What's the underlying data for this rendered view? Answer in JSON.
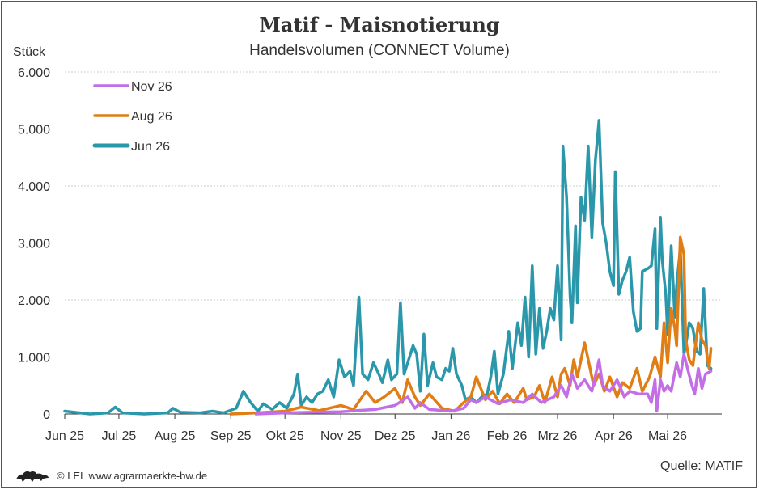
{
  "chart_data": {
    "type": "line",
    "title": "Matif - Maisnotierung",
    "subtitle": "Handelsvolumen (CONNECT Volume)",
    "ylabel": "Stück",
    "ylim": [
      0,
      6000
    ],
    "yticks": [
      0,
      1000,
      2000,
      3000,
      4000,
      5000,
      6000
    ],
    "ytick_labels": [
      "0",
      "1.000",
      "2.000",
      "3.000",
      "4.000",
      "5.000",
      "6.000"
    ],
    "xlim": [
      "2025-06-01",
      "2026-05-31"
    ],
    "xticks": [
      "2025-06-01",
      "2025-07-01",
      "2025-08-01",
      "2025-09-01",
      "2025-10-01",
      "2025-11-01",
      "2025-12-01",
      "2026-01-01",
      "2026-02-01",
      "2026-03-01",
      "2026-04-01",
      "2026-05-01"
    ],
    "xtick_labels": [
      "Jun 25",
      "Jul 25",
      "Aug 25",
      "Sep 25",
      "Okt 25",
      "Nov 25",
      "Dez 25",
      "Jan 26",
      "Feb 26",
      "Mrz 26",
      "Apr 26",
      "Mai 26"
    ],
    "grid": "horizontal",
    "legend_position": "top-left",
    "series": [
      {
        "name": "Nov 26",
        "color": "#c36ee6",
        "points": [
          [
            "2025-09-15",
            0
          ],
          [
            "2025-10-01",
            20
          ],
          [
            "2025-10-15",
            30
          ],
          [
            "2025-11-01",
            40
          ],
          [
            "2025-11-10",
            60
          ],
          [
            "2025-11-20",
            80
          ],
          [
            "2025-12-01",
            150
          ],
          [
            "2025-12-08",
            300
          ],
          [
            "2025-12-12",
            100
          ],
          [
            "2025-12-15",
            200
          ],
          [
            "2025-12-20",
            80
          ],
          [
            "2026-01-01",
            50
          ],
          [
            "2026-01-08",
            100
          ],
          [
            "2026-01-12",
            250
          ],
          [
            "2026-01-15",
            200
          ],
          [
            "2026-01-20",
            300
          ],
          [
            "2026-01-27",
            180
          ],
          [
            "2026-02-03",
            250
          ],
          [
            "2026-02-10",
            200
          ],
          [
            "2026-02-15",
            350
          ],
          [
            "2026-02-20",
            200
          ],
          [
            "2026-02-27",
            300
          ],
          [
            "2026-03-03",
            500
          ],
          [
            "2026-03-06",
            300
          ],
          [
            "2026-03-09",
            700
          ],
          [
            "2026-03-12",
            450
          ],
          [
            "2026-03-16",
            600
          ],
          [
            "2026-03-20",
            400
          ],
          [
            "2026-03-24",
            950
          ],
          [
            "2026-03-26",
            500
          ],
          [
            "2026-03-30",
            400
          ],
          [
            "2026-04-03",
            600
          ],
          [
            "2026-04-07",
            300
          ],
          [
            "2026-04-10",
            400
          ],
          [
            "2026-04-15",
            350
          ],
          [
            "2026-04-20",
            350
          ],
          [
            "2026-04-22",
            200
          ],
          [
            "2026-04-24",
            600
          ],
          [
            "2026-04-25",
            50
          ],
          [
            "2026-04-27",
            600
          ],
          [
            "2026-04-29",
            400
          ],
          [
            "2026-05-01",
            500
          ],
          [
            "2026-05-03",
            400
          ],
          [
            "2026-05-06",
            900
          ],
          [
            "2026-05-08",
            650
          ],
          [
            "2026-05-10",
            1050
          ],
          [
            "2026-05-12",
            800
          ],
          [
            "2026-05-14",
            550
          ],
          [
            "2026-05-16",
            350
          ],
          [
            "2026-05-18",
            800
          ],
          [
            "2026-05-20",
            450
          ],
          [
            "2026-05-22",
            700
          ],
          [
            "2026-05-25",
            750
          ]
        ]
      },
      {
        "name": "Aug 26",
        "color": "#e07d14",
        "points": [
          [
            "2025-09-01",
            0
          ],
          [
            "2025-09-15",
            20
          ],
          [
            "2025-10-01",
            50
          ],
          [
            "2025-10-10",
            120
          ],
          [
            "2025-10-20",
            60
          ],
          [
            "2025-11-01",
            150
          ],
          [
            "2025-11-08",
            80
          ],
          [
            "2025-11-15",
            400
          ],
          [
            "2025-11-20",
            200
          ],
          [
            "2025-11-25",
            300
          ],
          [
            "2025-12-01",
            450
          ],
          [
            "2025-12-05",
            200
          ],
          [
            "2025-12-08",
            600
          ],
          [
            "2025-12-12",
            300
          ],
          [
            "2025-12-15",
            150
          ],
          [
            "2025-12-20",
            350
          ],
          [
            "2025-12-27",
            100
          ],
          [
            "2026-01-03",
            50
          ],
          [
            "2026-01-08",
            200
          ],
          [
            "2026-01-12",
            300
          ],
          [
            "2026-01-15",
            650
          ],
          [
            "2026-01-20",
            250
          ],
          [
            "2026-01-24",
            400
          ],
          [
            "2026-01-28",
            180
          ],
          [
            "2026-02-01",
            350
          ],
          [
            "2026-02-05",
            200
          ],
          [
            "2026-02-10",
            450
          ],
          [
            "2026-02-12",
            250
          ],
          [
            "2026-02-16",
            300
          ],
          [
            "2026-02-19",
            500
          ],
          [
            "2026-02-22",
            200
          ],
          [
            "2026-02-26",
            650
          ],
          [
            "2026-03-01",
            300
          ],
          [
            "2026-03-03",
            700
          ],
          [
            "2026-03-05",
            800
          ],
          [
            "2026-03-08",
            500
          ],
          [
            "2026-03-10",
            950
          ],
          [
            "2026-03-12",
            650
          ],
          [
            "2026-03-16",
            1250
          ],
          [
            "2026-03-19",
            800
          ],
          [
            "2026-03-21",
            500
          ],
          [
            "2026-03-24",
            700
          ],
          [
            "2026-03-27",
            400
          ],
          [
            "2026-03-30",
            650
          ],
          [
            "2026-04-03",
            300
          ],
          [
            "2026-04-06",
            550
          ],
          [
            "2026-04-10",
            450
          ],
          [
            "2026-04-14",
            800
          ],
          [
            "2026-04-17",
            400
          ],
          [
            "2026-04-21",
            650
          ],
          [
            "2026-04-24",
            1000
          ],
          [
            "2026-04-27",
            650
          ],
          [
            "2026-04-29",
            1600
          ],
          [
            "2026-05-01",
            900
          ],
          [
            "2026-05-03",
            1850
          ],
          [
            "2026-05-05",
            1500
          ],
          [
            "2026-05-06",
            1200
          ],
          [
            "2026-05-08",
            3100
          ],
          [
            "2026-05-10",
            2800
          ],
          [
            "2026-05-11",
            1300
          ],
          [
            "2026-05-13",
            950
          ],
          [
            "2026-05-15",
            850
          ],
          [
            "2026-05-18",
            1600
          ],
          [
            "2026-05-20",
            1300
          ],
          [
            "2026-05-22",
            1200
          ],
          [
            "2026-05-24",
            800
          ],
          [
            "2026-05-25",
            1150
          ]
        ]
      },
      {
        "name": "Jun 26",
        "color": "#2a98aa",
        "points": [
          [
            "2025-06-01",
            50
          ],
          [
            "2025-06-15",
            0
          ],
          [
            "2025-06-25",
            20
          ],
          [
            "2025-06-29",
            120
          ],
          [
            "2025-07-03",
            20
          ],
          [
            "2025-07-15",
            0
          ],
          [
            "2025-07-28",
            20
          ],
          [
            "2025-07-31",
            100
          ],
          [
            "2025-08-04",
            30
          ],
          [
            "2025-08-15",
            20
          ],
          [
            "2025-08-22",
            50
          ],
          [
            "2025-08-28",
            20
          ],
          [
            "2025-09-04",
            100
          ],
          [
            "2025-09-08",
            400
          ],
          [
            "2025-09-12",
            200
          ],
          [
            "2025-09-16",
            50
          ],
          [
            "2025-09-19",
            180
          ],
          [
            "2025-09-24",
            80
          ],
          [
            "2025-09-28",
            200
          ],
          [
            "2025-10-02",
            100
          ],
          [
            "2025-10-06",
            350
          ],
          [
            "2025-10-08",
            700
          ],
          [
            "2025-10-10",
            150
          ],
          [
            "2025-10-13",
            300
          ],
          [
            "2025-10-16",
            200
          ],
          [
            "2025-10-19",
            350
          ],
          [
            "2025-10-22",
            400
          ],
          [
            "2025-10-25",
            600
          ],
          [
            "2025-10-28",
            300
          ],
          [
            "2025-10-31",
            950
          ],
          [
            "2025-11-03",
            650
          ],
          [
            "2025-11-06",
            750
          ],
          [
            "2025-11-08",
            500
          ],
          [
            "2025-11-11",
            2050
          ],
          [
            "2025-11-13",
            700
          ],
          [
            "2025-11-16",
            600
          ],
          [
            "2025-11-19",
            900
          ],
          [
            "2025-11-22",
            700
          ],
          [
            "2025-11-24",
            550
          ],
          [
            "2025-11-27",
            950
          ],
          [
            "2025-11-29",
            600
          ],
          [
            "2025-12-02",
            700
          ],
          [
            "2025-12-04",
            1950
          ],
          [
            "2025-12-06",
            700
          ],
          [
            "2025-12-09",
            1000
          ],
          [
            "2025-12-11",
            1200
          ],
          [
            "2025-12-13",
            1050
          ],
          [
            "2025-12-15",
            400
          ],
          [
            "2025-12-17",
            1400
          ],
          [
            "2025-12-19",
            500
          ],
          [
            "2025-12-22",
            900
          ],
          [
            "2025-12-24",
            650
          ],
          [
            "2025-12-27",
            600
          ],
          [
            "2025-12-29",
            800
          ],
          [
            "2025-12-31",
            750
          ],
          [
            "2026-01-02",
            1150
          ],
          [
            "2026-01-04",
            700
          ],
          [
            "2026-01-07",
            500
          ],
          [
            "2026-01-09",
            250
          ],
          [
            "2026-01-12",
            300
          ],
          [
            "2026-01-15",
            200
          ],
          [
            "2026-01-18",
            300
          ],
          [
            "2026-01-21",
            350
          ],
          [
            "2026-01-23",
            650
          ],
          [
            "2026-01-25",
            1100
          ],
          [
            "2026-01-27",
            350
          ],
          [
            "2026-01-30",
            700
          ],
          [
            "2026-02-02",
            1450
          ],
          [
            "2026-02-04",
            800
          ],
          [
            "2026-02-07",
            1600
          ],
          [
            "2026-02-09",
            1200
          ],
          [
            "2026-02-11",
            2050
          ],
          [
            "2026-02-13",
            1000
          ],
          [
            "2026-02-15",
            2600
          ],
          [
            "2026-02-17",
            1050
          ],
          [
            "2026-02-19",
            1850
          ],
          [
            "2026-02-21",
            1150
          ],
          [
            "2026-02-23",
            1450
          ],
          [
            "2026-02-25",
            1850
          ],
          [
            "2026-02-27",
            1650
          ],
          [
            "2026-03-01",
            2600
          ],
          [
            "2026-03-03",
            1300
          ],
          [
            "2026-03-04",
            4700
          ],
          [
            "2026-03-06",
            3800
          ],
          [
            "2026-03-08",
            2050
          ],
          [
            "2026-03-09",
            1600
          ],
          [
            "2026-03-11",
            3300
          ],
          [
            "2026-03-12",
            1950
          ],
          [
            "2026-03-14",
            3800
          ],
          [
            "2026-03-16",
            3400
          ],
          [
            "2026-03-18",
            4700
          ],
          [
            "2026-03-20",
            3100
          ],
          [
            "2026-03-22",
            4450
          ],
          [
            "2026-03-24",
            5150
          ],
          [
            "2026-03-26",
            3350
          ],
          [
            "2026-03-28",
            3000
          ],
          [
            "2026-03-30",
            2500
          ],
          [
            "2026-04-01",
            2250
          ],
          [
            "2026-04-02",
            4250
          ],
          [
            "2026-04-04",
            2100
          ],
          [
            "2026-04-06",
            2350
          ],
          [
            "2026-04-08",
            2500
          ],
          [
            "2026-04-10",
            2750
          ],
          [
            "2026-04-12",
            1800
          ],
          [
            "2026-04-14",
            1450
          ],
          [
            "2026-04-16",
            1500
          ],
          [
            "2026-04-17",
            2500
          ],
          [
            "2026-04-20",
            2550
          ],
          [
            "2026-04-22",
            2600
          ],
          [
            "2026-04-24",
            3250
          ],
          [
            "2026-04-25",
            1500
          ],
          [
            "2026-04-27",
            3450
          ],
          [
            "2026-04-28",
            2700
          ],
          [
            "2026-04-30",
            2100
          ],
          [
            "2026-05-01",
            1400
          ],
          [
            "2026-05-03",
            2950
          ],
          [
            "2026-05-05",
            1700
          ],
          [
            "2026-05-06",
            2250
          ],
          [
            "2026-05-08",
            2900
          ],
          [
            "2026-05-10",
            1050
          ],
          [
            "2026-05-11",
            1200
          ],
          [
            "2026-05-13",
            1600
          ],
          [
            "2026-05-15",
            1500
          ],
          [
            "2026-05-17",
            1100
          ],
          [
            "2026-05-19",
            1050
          ],
          [
            "2026-05-21",
            2200
          ],
          [
            "2026-05-23",
            850
          ],
          [
            "2026-05-25",
            800
          ]
        ]
      }
    ],
    "legend": [
      {
        "name": "Nov 26",
        "color": "#c36ee6"
      },
      {
        "name": "Aug 26",
        "color": "#e07d14"
      },
      {
        "name": "Jun 26",
        "color": "#2a98aa"
      }
    ]
  },
  "footer": {
    "source": "Quelle: MATIF",
    "credit": "© LEL www.agrarmaerkte-bw.de",
    "logo_icon": "lion-icon"
  }
}
